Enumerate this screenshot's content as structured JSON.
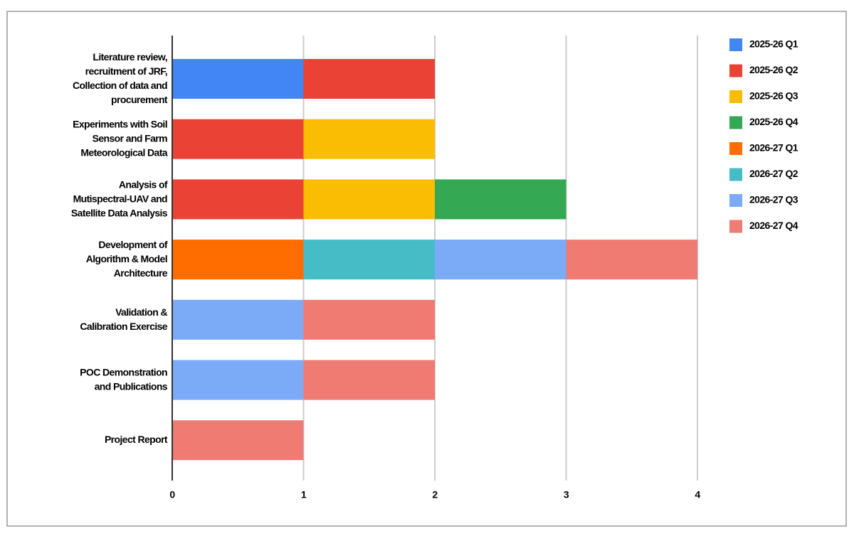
{
  "chart_data": {
    "type": "stacked-barh",
    "categories": [
      [
        "Literature review,",
        "recruitment of JRF,",
        "Collection of data and",
        "procurement"
      ],
      [
        "Experiments with Soil",
        "Sensor and Farm",
        "Meteorological Data"
      ],
      [
        "Analysis of",
        "Mutispectral-UAV and",
        "Satellite Data Analysis"
      ],
      [
        "Development of",
        "Algorithm & Model",
        "Architecture"
      ],
      [
        "Validation &",
        "Calibration Exercise"
      ],
      [
        "POC Demonstration",
        "and Publications"
      ],
      [
        "Project Report"
      ]
    ],
    "series": [
      {
        "name": "2025-26 Q1",
        "color": "#4285f4",
        "values": [
          1,
          null,
          null,
          null,
          null,
          null,
          null
        ]
      },
      {
        "name": "2025-26 Q2",
        "color": "#ea4335",
        "values": [
          1,
          1,
          1,
          null,
          null,
          null,
          null
        ]
      },
      {
        "name": "2025-26 Q3",
        "color": "#fbbc04",
        "values": [
          null,
          1,
          1,
          null,
          null,
          null,
          null
        ]
      },
      {
        "name": "2025-26 Q4",
        "color": "#34a853",
        "values": [
          null,
          null,
          1,
          null,
          null,
          null,
          null
        ]
      },
      {
        "name": "2026-27 Q1",
        "color": "#ff6d01",
        "values": [
          null,
          null,
          null,
          1,
          null,
          null,
          null
        ]
      },
      {
        "name": "2026-27 Q2",
        "color": "#46bdc6",
        "values": [
          null,
          null,
          null,
          1,
          null,
          null,
          null
        ]
      },
      {
        "name": "2026-27 Q3",
        "color": "#7baaf7",
        "values": [
          null,
          null,
          null,
          1,
          1,
          1,
          null
        ]
      },
      {
        "name": "2026-27 Q4",
        "color": "#f07b72",
        "values": [
          null,
          null,
          null,
          1,
          1,
          1,
          1
        ]
      }
    ],
    "xlim": [
      0,
      4
    ],
    "xticks": [
      0,
      1,
      2,
      3,
      4
    ],
    "grid": true,
    "legend": "right"
  }
}
